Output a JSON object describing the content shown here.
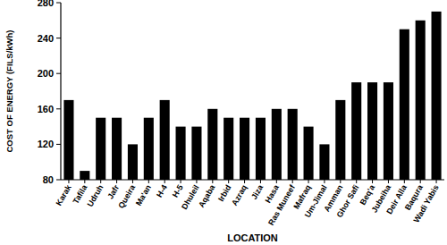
{
  "chart_data": {
    "type": "bar",
    "x_label": "LOCATION",
    "y_label": "COST OF ENERGY (FILS/kWh)",
    "categories": [
      "Karak",
      "Tafila",
      "Udruh",
      "Jafr",
      "Queira",
      "Ma'an",
      "H-4",
      "H-5",
      "Dhuleil",
      "Aqaba",
      "Irbid",
      "Azraq",
      "Jiza",
      "Hasa",
      "Ras Muneef",
      "Mafraq",
      "Um-Jimal",
      "Amman",
      "Ghor Safi",
      "Beq'a",
      "Jubeiha",
      "Deir Alla",
      "Baqura",
      "Wadi Yabis"
    ],
    "values": [
      170,
      90,
      150,
      150,
      120,
      150,
      170,
      140,
      140,
      160,
      150,
      150,
      150,
      160,
      160,
      140,
      120,
      170,
      190,
      190,
      190,
      250,
      260,
      270
    ],
    "color": "#000000",
    "ylim": [
      80,
      280
    ],
    "yticks": [
      80,
      120,
      160,
      200,
      240,
      280
    ],
    "grid": false
  }
}
